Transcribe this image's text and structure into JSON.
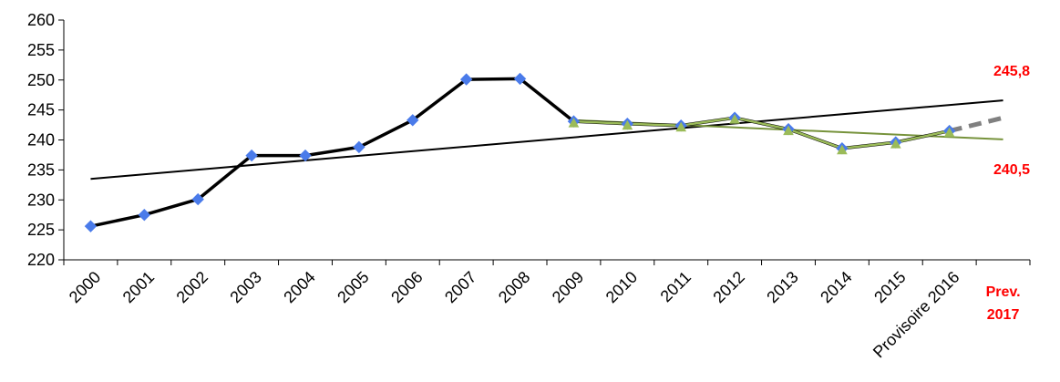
{
  "chart_data": {
    "type": "line",
    "categories": [
      "2000",
      "2001",
      "2002",
      "2003",
      "2004",
      "2005",
      "2006",
      "2007",
      "2008",
      "2009",
      "2010",
      "2011",
      "2012",
      "2013",
      "2014",
      "2015",
      "Provisoire 2016",
      "Prev. 2017"
    ],
    "ylim": [
      220,
      260
    ],
    "yticks": [
      220,
      225,
      230,
      235,
      240,
      245,
      250,
      255,
      260
    ],
    "grid": false,
    "legend": "none",
    "series": [
      {
        "role": "main",
        "color": "#000000",
        "marker_color": "#4a7bea",
        "values": [
          225.6,
          227.5,
          230.1,
          237.4,
          237.4,
          238.8,
          243.3,
          250.1,
          250.2,
          243.1,
          242.7,
          242.4,
          243.7,
          241.8,
          238.6,
          239.6,
          241.5,
          null
        ]
      },
      {
        "role": "recent",
        "color": "#9bbb59",
        "values": [
          null,
          null,
          null,
          null,
          null,
          null,
          null,
          null,
          null,
          243.1,
          242.7,
          242.4,
          243.7,
          241.8,
          238.6,
          239.6,
          241.5,
          null
        ]
      },
      {
        "role": "forecast",
        "color": "#808080",
        "style": "dashed",
        "values": [
          null,
          null,
          null,
          null,
          null,
          null,
          null,
          null,
          null,
          null,
          null,
          null,
          null,
          null,
          null,
          null,
          241.5,
          243.7
        ]
      }
    ],
    "trendlines": [
      {
        "role": "long-term",
        "color": "#000000",
        "from": [
          0,
          233.5
        ],
        "to": [
          17,
          246.6
        ]
      },
      {
        "role": "recent",
        "color": "#77933c",
        "from": [
          9,
          243.3
        ],
        "to": [
          17,
          240.1
        ]
      }
    ],
    "annotations": [
      {
        "text": "245,8",
        "color": "#ff0000"
      },
      {
        "text": "240,5",
        "color": "#ff0000"
      }
    ],
    "last_category_label": {
      "line1": "Prev.",
      "line2": "2017",
      "color": "#ff0000"
    }
  }
}
